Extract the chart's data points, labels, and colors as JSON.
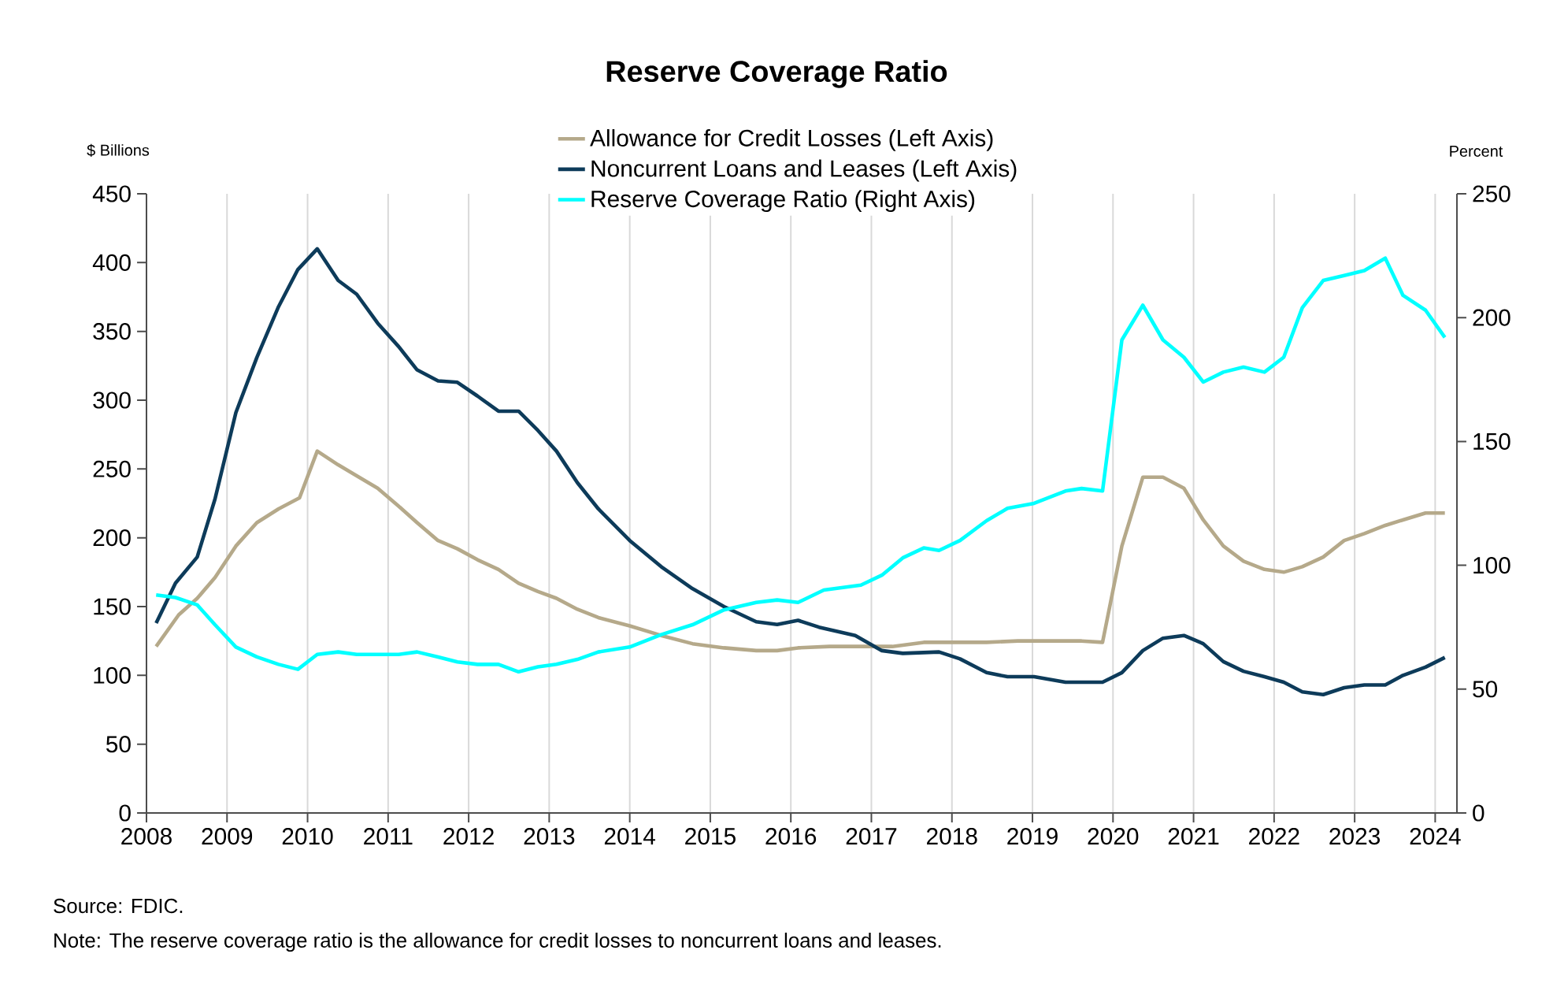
{
  "chart_data": {
    "type": "line",
    "title": "Reserve Coverage Ratio",
    "ylabel": "$ Billions",
    "y2label": "Percent",
    "xlim": [
      2008,
      2024.27
    ],
    "xticks": [
      2008,
      2009,
      2010,
      2011,
      2012,
      2013,
      2014,
      2015,
      2016,
      2017,
      2018,
      2019,
      2020,
      2021,
      2022,
      2023,
      2024
    ],
    "ylim": [
      0,
      450
    ],
    "yticks": [
      0,
      50,
      100,
      150,
      200,
      250,
      300,
      350,
      400,
      450
    ],
    "y2lim": [
      0,
      250
    ],
    "y2ticks": [
      0,
      50,
      100,
      150,
      200,
      250
    ],
    "grid": "x",
    "legend": "top",
    "annotations": [
      "Source: FDIC.",
      "Note: The reserve coverage ratio is the allowance for credit losses to noncurrent loans and leases."
    ],
    "series": [
      {
        "name": "Allowance for Credit Losses (Left Axis)",
        "color": "#b5a98a",
        "x": [
          2008.12,
          2008.4,
          2008.63,
          2008.85,
          2009.11,
          2009.37,
          2009.64,
          2009.9,
          2010.12,
          2010.38,
          2010.61,
          2010.87,
          2011.13,
          2011.36,
          2011.62,
          2011.86,
          2012.11,
          2012.37,
          2012.62,
          2012.86,
          2013.09,
          2013.35,
          2013.61,
          2014.0,
          2014.39,
          2014.78,
          2015.17,
          2015.57,
          2015.83,
          2016.09,
          2016.48,
          2016.87,
          2017.26,
          2017.65,
          2018.04,
          2018.43,
          2018.82,
          2019.08,
          2019.61,
          2019.87,
          2020.11,
          2020.37,
          2020.62,
          2020.88,
          2021.12,
          2021.37,
          2021.62,
          2021.88,
          2022.12,
          2022.35,
          2022.61,
          2022.87,
          2023.12,
          2023.38,
          2023.6,
          2023.88,
          2024.12
        ],
        "values": [
          121,
          144,
          156,
          171,
          194,
          211,
          221,
          229,
          263,
          253,
          245,
          236,
          223,
          211,
          198,
          192,
          184,
          177,
          167,
          161,
          156,
          148,
          142,
          136,
          129,
          123,
          120,
          118,
          118,
          120,
          121,
          121,
          121,
          124,
          124,
          124,
          125,
          125,
          125,
          124,
          194,
          244,
          244,
          236,
          213,
          194,
          183,
          177,
          175,
          179,
          186,
          198,
          203,
          209,
          213,
          218,
          218
        ]
      },
      {
        "name": "Noncurrent Loans and Leases (Left Axis)",
        "color": "#0d3b5a",
        "x": [
          2008.12,
          2008.36,
          2008.63,
          2008.85,
          2009.11,
          2009.37,
          2009.64,
          2009.88,
          2010.12,
          2010.38,
          2010.61,
          2010.87,
          2011.13,
          2011.36,
          2011.62,
          2011.86,
          2012.11,
          2012.37,
          2012.62,
          2012.86,
          2013.09,
          2013.35,
          2013.61,
          2014.0,
          2014.39,
          2014.78,
          2015.17,
          2015.57,
          2015.83,
          2016.09,
          2016.35,
          2016.8,
          2017.13,
          2017.39,
          2017.84,
          2018.1,
          2018.43,
          2018.69,
          2019.02,
          2019.41,
          2019.87,
          2020.11,
          2020.37,
          2020.62,
          2020.88,
          2021.12,
          2021.37,
          2021.62,
          2021.88,
          2022.12,
          2022.35,
          2022.61,
          2022.87,
          2023.12,
          2023.38,
          2023.6,
          2023.88,
          2024.12
        ],
        "values": [
          138,
          167,
          186,
          228,
          291,
          331,
          368,
          395,
          410,
          387,
          377,
          356,
          339,
          322,
          314,
          313,
          303,
          292,
          292,
          278,
          263,
          240,
          221,
          198,
          179,
          163,
          150,
          139,
          137,
          140,
          135,
          129,
          118,
          116,
          117,
          112,
          102,
          99,
          99,
          95,
          95,
          102,
          118,
          127,
          129,
          123,
          110,
          103,
          99,
          95,
          88,
          86,
          91,
          93,
          93,
          100,
          106,
          113
        ]
      },
      {
        "name": "Reserve Coverage Ratio (Right Axis)",
        "color": "#00ffff",
        "axis": "y2",
        "x": [
          2008.12,
          2008.36,
          2008.63,
          2008.85,
          2009.11,
          2009.37,
          2009.64,
          2009.88,
          2010.12,
          2010.38,
          2010.61,
          2010.87,
          2011.13,
          2011.36,
          2011.62,
          2011.86,
          2012.11,
          2012.37,
          2012.62,
          2012.86,
          2013.09,
          2013.35,
          2013.61,
          2014.0,
          2014.39,
          2014.78,
          2015.17,
          2015.57,
          2015.83,
          2016.09,
          2016.41,
          2016.87,
          2017.13,
          2017.39,
          2017.65,
          2017.84,
          2018.1,
          2018.43,
          2018.69,
          2019.02,
          2019.41,
          2019.61,
          2019.87,
          2020.11,
          2020.37,
          2020.62,
          2020.88,
          2021.12,
          2021.37,
          2021.62,
          2021.88,
          2022.12,
          2022.35,
          2022.61,
          2022.87,
          2023.12,
          2023.38,
          2023.6,
          2023.88,
          2024.12
        ],
        "values": [
          88,
          87,
          84,
          76,
          67,
          63,
          60,
          58,
          64,
          65,
          64,
          64,
          64,
          65,
          63,
          61,
          60,
          60,
          57,
          59,
          60,
          62,
          65,
          67,
          72,
          76,
          82,
          85,
          86,
          85,
          90,
          92,
          96,
          103,
          107,
          106,
          110,
          118,
          123,
          125,
          130,
          131,
          130,
          191,
          205,
          191,
          184,
          174,
          178,
          180,
          178,
          184,
          204,
          215,
          217,
          219,
          224,
          209,
          203,
          192
        ]
      }
    ]
  }
}
